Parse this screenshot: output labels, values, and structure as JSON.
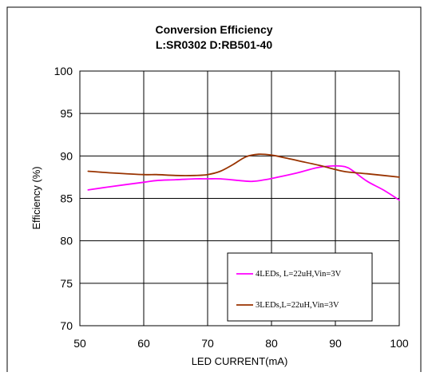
{
  "chart_data": {
    "type": "line",
    "title": "Conversion Efficiency",
    "subtitle": "L:SR0302 D:RB501-40",
    "xlabel": "LED CURRENT(mA)",
    "ylabel": "Efficiency (%)",
    "xlim": [
      50,
      100
    ],
    "ylim": [
      70,
      100
    ],
    "x_ticks": [
      "50",
      "60",
      "70",
      "80",
      "90",
      "100"
    ],
    "y_ticks": [
      "70",
      "75",
      "80",
      "85",
      "90",
      "95",
      "100"
    ],
    "grid": true,
    "legend_position": "bottom-right",
    "series": [
      {
        "name": "4LEDs, L=22uH,Vin=3V",
        "color": "#ff00ff",
        "x": [
          51.3,
          55,
          60,
          62,
          65,
          68,
          70,
          72,
          75,
          77,
          79,
          81,
          84,
          87,
          89,
          91,
          92,
          93,
          95,
          97.5,
          100
        ],
        "y": [
          86.0,
          86.4,
          86.9,
          87.1,
          87.2,
          87.3,
          87.3,
          87.3,
          87.1,
          87.0,
          87.2,
          87.5,
          88.0,
          88.6,
          88.8,
          88.8,
          88.6,
          88.1,
          87.0,
          86.0,
          84.8
        ]
      },
      {
        "name": "3LEDs,L=22uH,Vin=3V",
        "color": "#993300",
        "x": [
          51.3,
          55,
          60,
          62,
          65,
          68,
          70,
          72,
          74,
          76,
          78,
          80,
          82,
          85,
          88,
          90,
          92,
          95,
          100
        ],
        "y": [
          88.2,
          88.0,
          87.8,
          87.8,
          87.7,
          87.7,
          87.8,
          88.2,
          89.0,
          89.9,
          90.2,
          90.1,
          89.8,
          89.3,
          88.8,
          88.4,
          88.1,
          87.9,
          87.5
        ]
      }
    ]
  }
}
